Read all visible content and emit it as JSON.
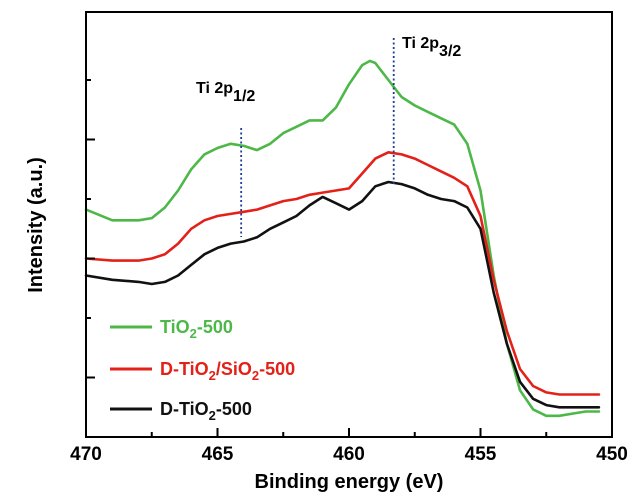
{
  "chart_data": {
    "type": "line",
    "xlabel": "Binding energy (eV)",
    "ylabel": "Intensity (a.u.)",
    "xlim": [
      470,
      450
    ],
    "x_reversed": true,
    "y_ticks_labeled": false,
    "x_ticks": [
      "470",
      "465",
      "460",
      "455",
      "450"
    ],
    "annotations": [
      {
        "text": "Ti 2p",
        "sub": "1/2",
        "x": 464.1
      },
      {
        "text": "Ti 2p",
        "sub": "3/2",
        "x": 458.3
      }
    ],
    "legend_position": "bottom-left",
    "series": [
      {
        "name": "TiO2-500",
        "label_parts": [
          [
            "TiO",
            false
          ],
          [
            "2",
            true
          ],
          [
            "-500",
            false
          ]
        ],
        "color": "#4db848",
        "x": [
          470,
          469,
          468,
          467.5,
          467,
          466.5,
          466,
          465.5,
          465,
          464.5,
          464,
          463.5,
          463,
          462.5,
          462,
          461.5,
          461,
          460.5,
          460,
          459.5,
          459.2,
          459,
          458.5,
          458,
          457.5,
          457,
          456.5,
          456,
          455.5,
          455,
          454.5,
          454,
          453.5,
          453,
          452.5,
          452,
          451.5,
          451,
          450.5
        ],
        "y": [
          0.535,
          0.51,
          0.51,
          0.515,
          0.54,
          0.58,
          0.63,
          0.665,
          0.68,
          0.69,
          0.685,
          0.675,
          0.69,
          0.715,
          0.73,
          0.745,
          0.745,
          0.775,
          0.83,
          0.875,
          0.885,
          0.88,
          0.84,
          0.8,
          0.78,
          0.765,
          0.75,
          0.735,
          0.69,
          0.58,
          0.38,
          0.22,
          0.11,
          0.065,
          0.05,
          0.05,
          0.055,
          0.06,
          0.06
        ]
      },
      {
        "name": "D-TiO2/SiO2-500",
        "label_parts": [
          [
            "D-TiO",
            false
          ],
          [
            "2",
            true
          ],
          [
            "/SiO",
            false
          ],
          [
            "2",
            true
          ],
          [
            "-500",
            false
          ]
        ],
        "color": "#e32119",
        "x": [
          470,
          469,
          468,
          467.5,
          467,
          466.5,
          466,
          465.5,
          465,
          464.5,
          464,
          463.5,
          463,
          462.5,
          462,
          461.5,
          461,
          460.5,
          460,
          459.5,
          459,
          458.5,
          458,
          457.5,
          457,
          456.5,
          456,
          455.5,
          455,
          454.5,
          454,
          453.5,
          453,
          452.5,
          452,
          451.5,
          451,
          450.5
        ],
        "y": [
          0.42,
          0.415,
          0.415,
          0.42,
          0.43,
          0.455,
          0.49,
          0.51,
          0.52,
          0.525,
          0.53,
          0.535,
          0.545,
          0.555,
          0.56,
          0.57,
          0.575,
          0.58,
          0.585,
          0.62,
          0.655,
          0.67,
          0.665,
          0.655,
          0.64,
          0.625,
          0.61,
          0.59,
          0.52,
          0.37,
          0.25,
          0.16,
          0.12,
          0.105,
          0.1,
          0.1,
          0.1,
          0.1
        ]
      },
      {
        "name": "D-TiO2-500",
        "label_parts": [
          [
            "D-TiO",
            false
          ],
          [
            "2",
            true
          ],
          [
            "-500",
            false
          ]
        ],
        "color": "#111111",
        "x": [
          470,
          469,
          468,
          467.5,
          467,
          466.5,
          466,
          465.5,
          465,
          464.5,
          464,
          463.5,
          463,
          462.5,
          462,
          461.5,
          461,
          460.5,
          460,
          459.5,
          459,
          458.5,
          458,
          457.5,
          457,
          456.5,
          456,
          455.5,
          455,
          454.5,
          454,
          453.5,
          453,
          452.5,
          452,
          451.5,
          451,
          450.5
        ],
        "y": [
          0.38,
          0.37,
          0.365,
          0.36,
          0.365,
          0.38,
          0.405,
          0.43,
          0.445,
          0.455,
          0.46,
          0.47,
          0.49,
          0.505,
          0.52,
          0.545,
          0.565,
          0.55,
          0.535,
          0.555,
          0.59,
          0.6,
          0.595,
          0.585,
          0.57,
          0.56,
          0.555,
          0.54,
          0.49,
          0.34,
          0.22,
          0.13,
          0.09,
          0.075,
          0.07,
          0.07,
          0.07,
          0.07
        ]
      }
    ],
    "colors": {
      "axis": "#000000",
      "marker_line": "#1f3b9c"
    }
  }
}
